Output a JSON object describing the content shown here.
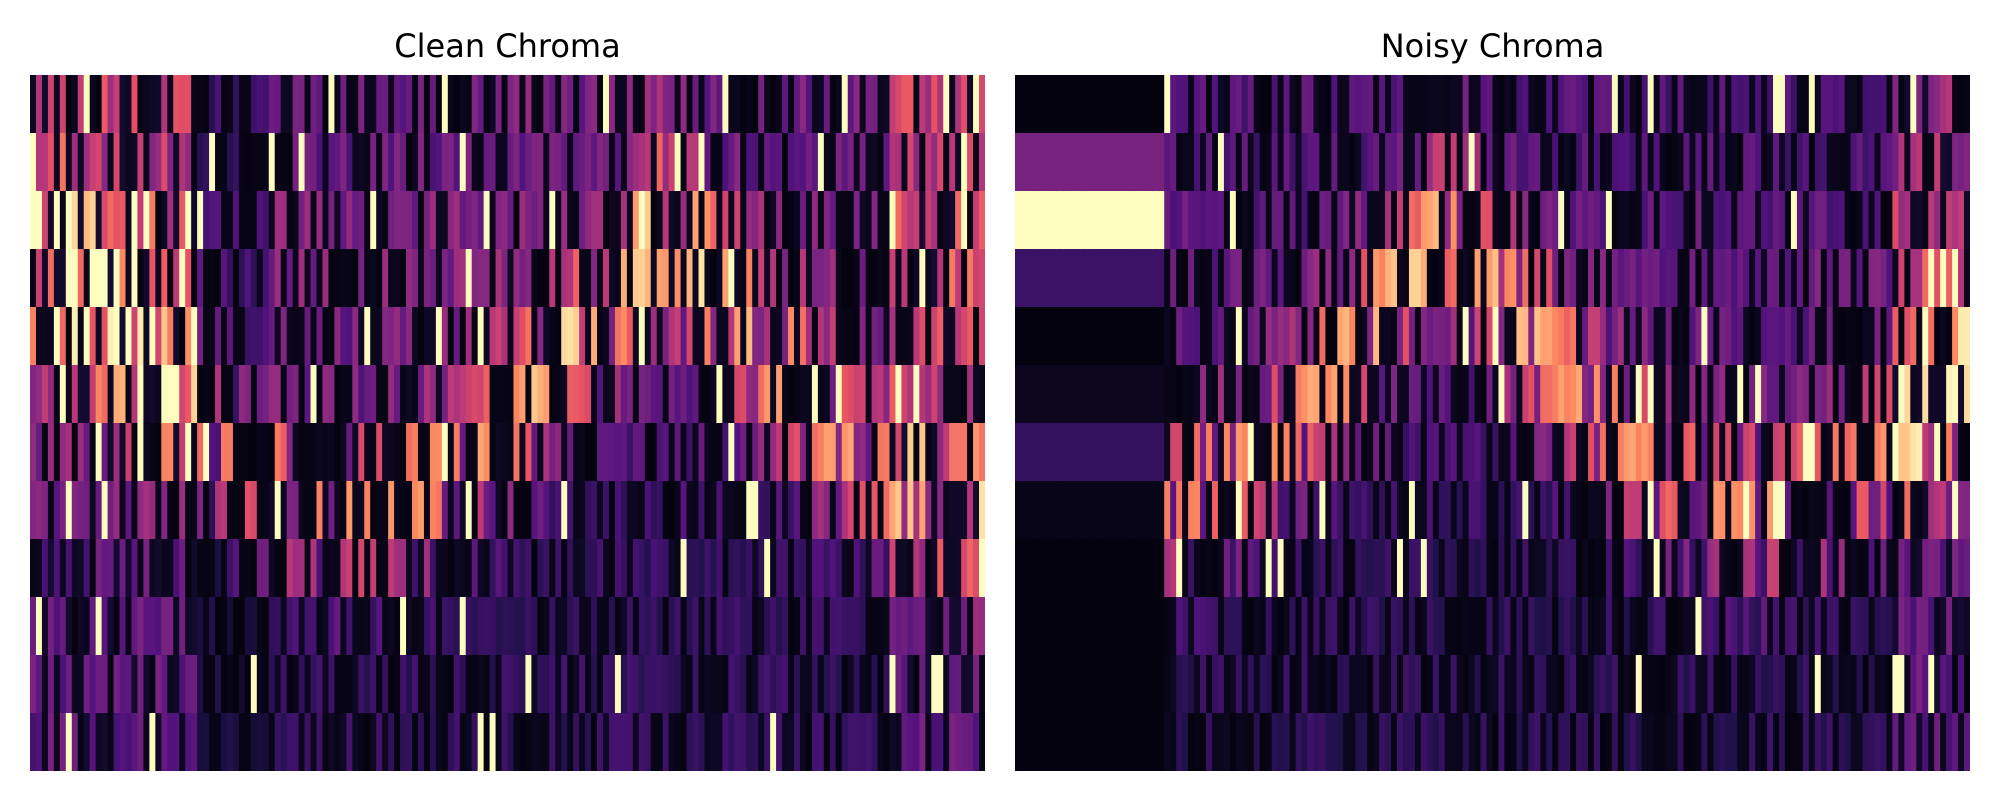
{
  "figure": {
    "colormap": "magma",
    "colormap_stops": [
      "#000004",
      "#1d1147",
      "#51127c",
      "#822681",
      "#b73779",
      "#e75263",
      "#fc8961",
      "#fec287",
      "#fcfdbf"
    ]
  },
  "chart_data": [
    {
      "type": "heatmap",
      "title": "Clean Chroma",
      "rows": 12,
      "frames": 160,
      "value_range": [
        0,
        1
      ],
      "axes_visible": false,
      "row_profile": [
        0.55,
        0.5,
        0.6,
        0.6,
        0.55,
        0.45,
        0.4,
        0.35,
        0.3,
        0.3,
        0.3,
        0.3
      ],
      "structure": "dense bright columns on the far left and far right, a dark gap near frames 30-40, a bright diagonal band sweeping down through rows 3-7 in the middle frames",
      "seed": 7
    },
    {
      "type": "heatmap",
      "title": "Noisy Chroma",
      "rows": 12,
      "frames": 160,
      "value_range": [
        0,
        1
      ],
      "axes_visible": false,
      "constant_block": {
        "frames": [
          0,
          24
        ],
        "values": [
          0.02,
          0.35,
          1.0,
          0.2,
          0.02,
          0.05,
          0.18,
          0.04,
          0.02,
          0.02,
          0.02,
          0.02
        ]
      },
      "row_profile": [
        0.45,
        0.45,
        0.5,
        0.55,
        0.5,
        0.45,
        0.4,
        0.35,
        0.3,
        0.3,
        0.3,
        0.3
      ],
      "structure": "flat block of constant values on the left, sparse bright columns in the middle, dense pink-orange columns on the far right",
      "seed": 19
    }
  ]
}
